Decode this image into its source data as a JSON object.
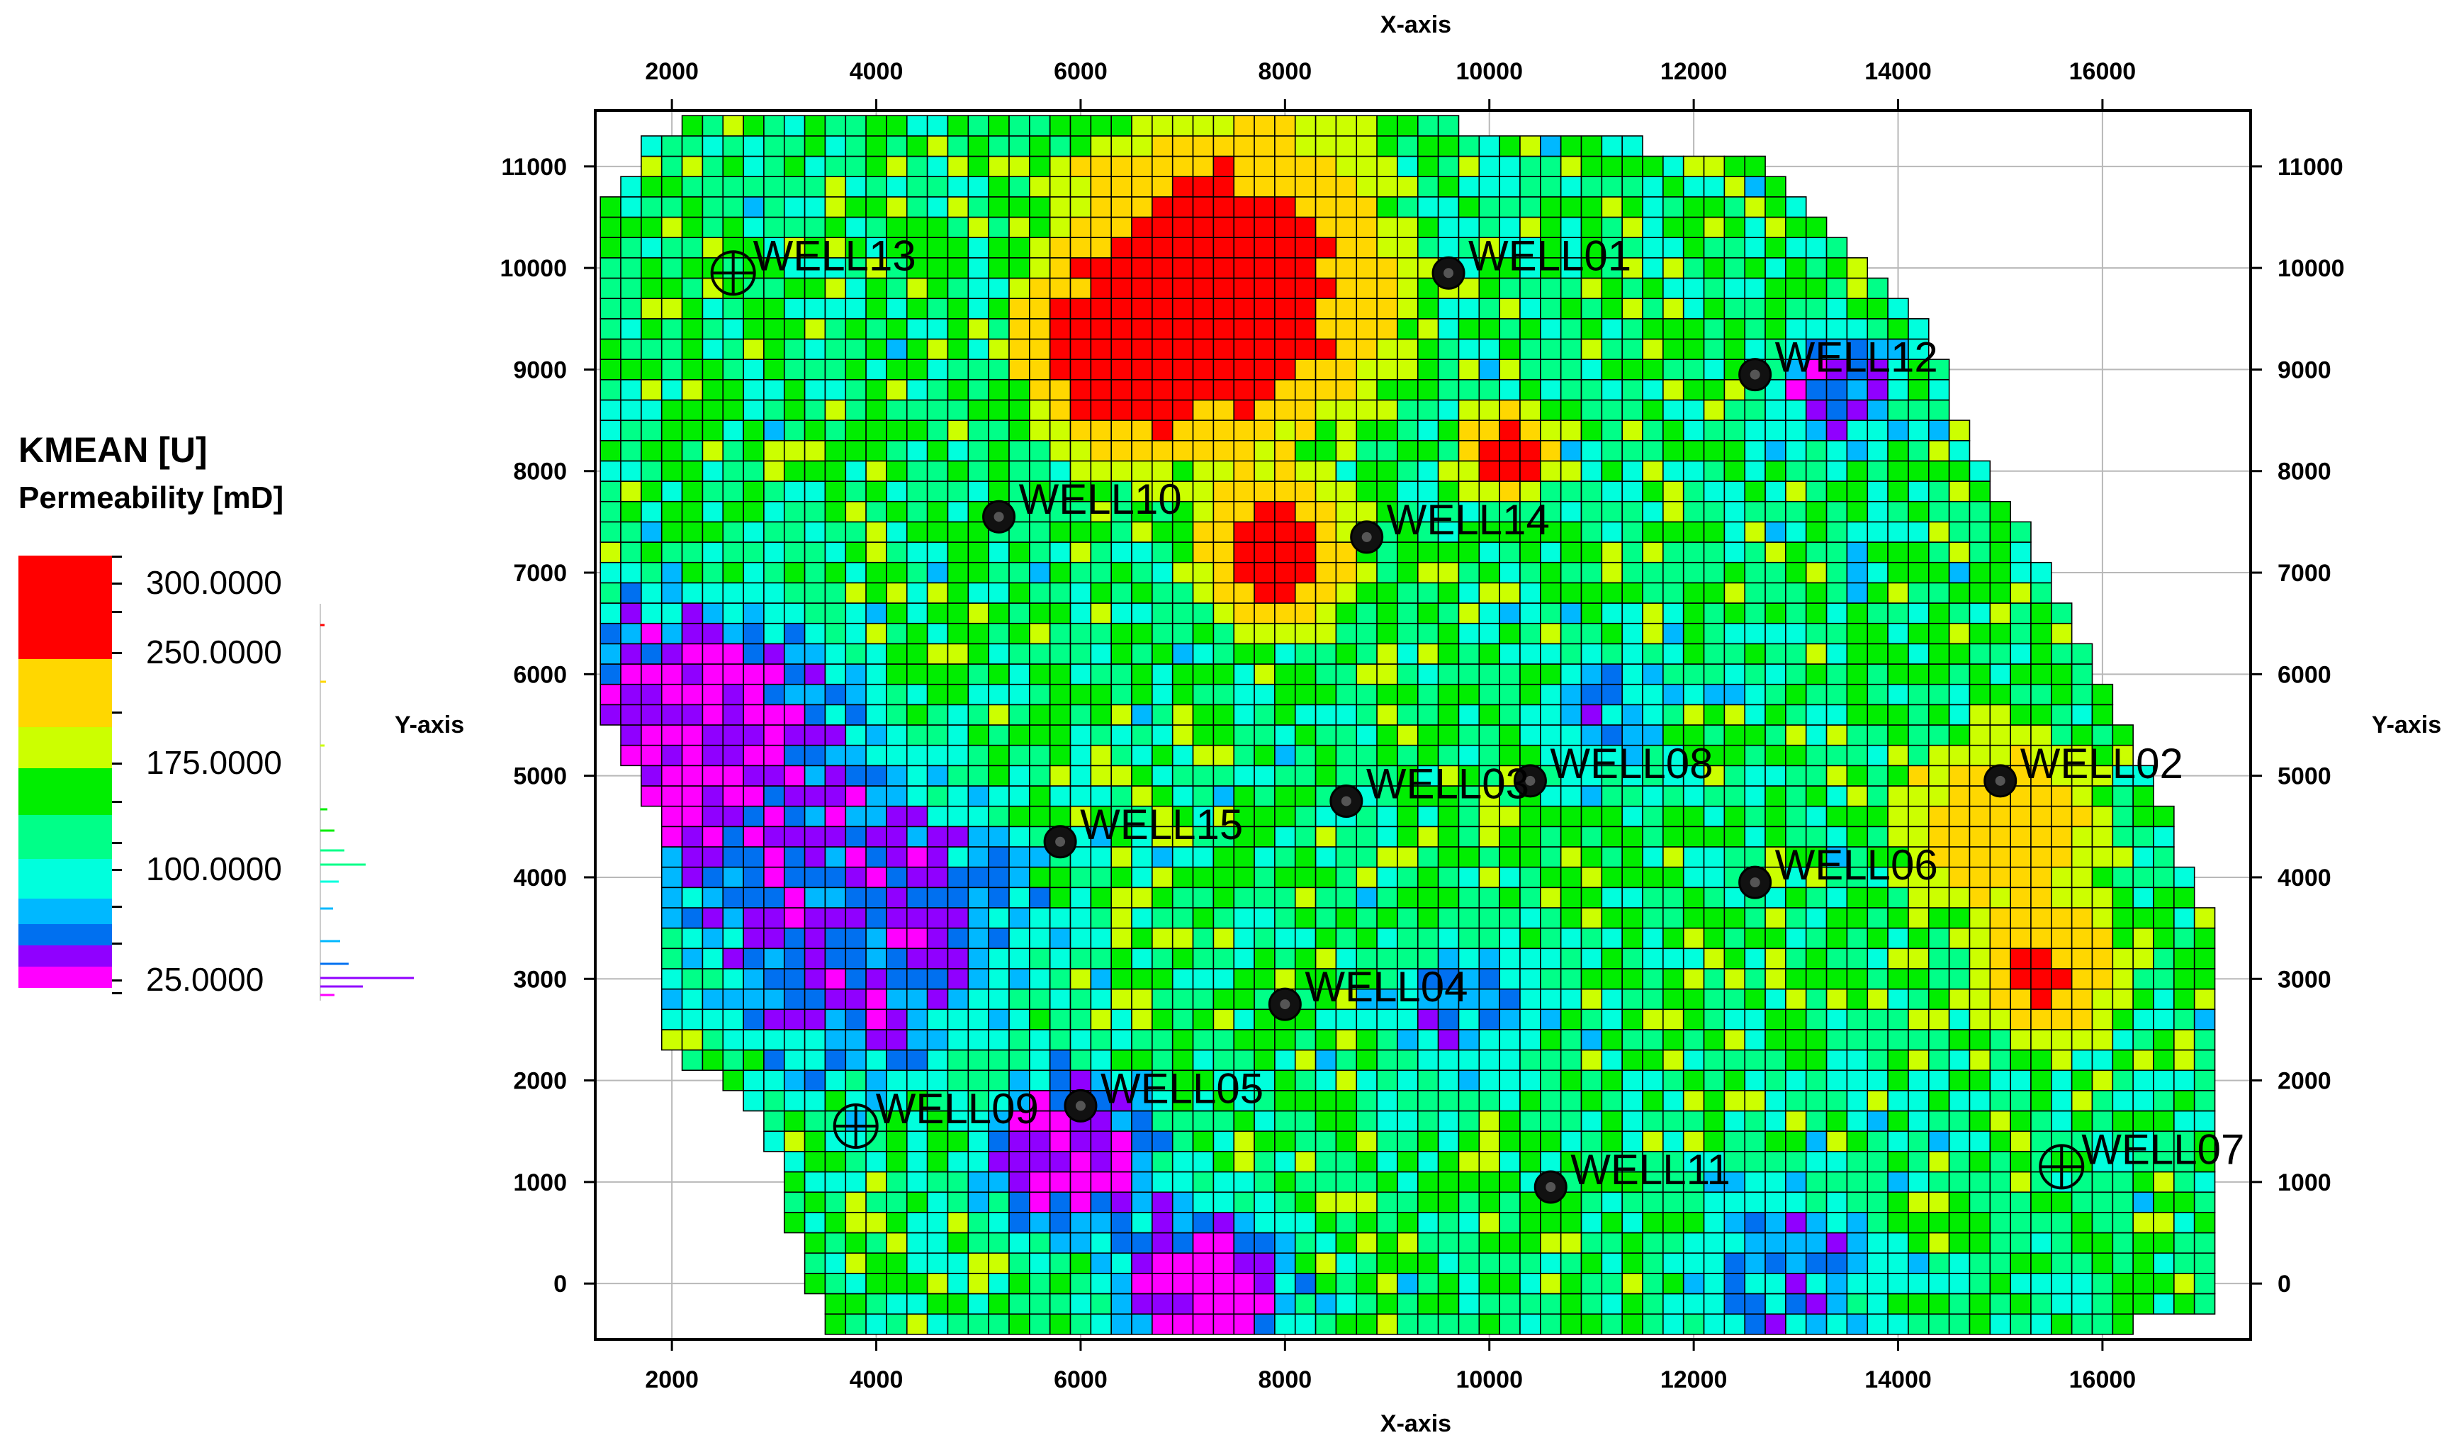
{
  "legend": {
    "title": "KMEAN [U]",
    "subtitle": "Permeability [mD]",
    "labels": [
      "300.0000",
      "250.0000",
      "175.0000",
      "100.0000",
      "25.0000"
    ],
    "label_values": [
      300,
      250,
      175,
      100,
      25
    ],
    "color_bands": [
      {
        "color": "#ff0000",
        "from": 250,
        "to": 300
      },
      {
        "color": "#ffd700",
        "from": 175,
        "to": 250
      },
      {
        "color": "#ccff00",
        "from": 125,
        "to": 175
      },
      {
        "color": "#00ee00",
        "from": 100,
        "to": 125
      },
      {
        "color": "#00ff88",
        "from": 75,
        "to": 100
      },
      {
        "color": "#00ffdd",
        "from": 50,
        "to": 75
      },
      {
        "color": "#00b8ff",
        "from": 35,
        "to": 50
      },
      {
        "color": "#0070f0",
        "from": 25,
        "to": 35
      },
      {
        "color": "#9000ff",
        "from": 10,
        "to": 25
      },
      {
        "color": "#ff00ff",
        "from": 0,
        "to": 10
      }
    ]
  },
  "axes": {
    "x_title_top": "X-axis",
    "x_title_bottom": "X-axis",
    "y_title_left": "Y-axis",
    "y_title_right": "Y-axis",
    "x_ticks": [
      "2000",
      "4000",
      "6000",
      "8000",
      "10000",
      "12000",
      "14000",
      "16000"
    ],
    "y_ticks": [
      "11000",
      "10000",
      "9000",
      "8000",
      "7000",
      "6000",
      "5000",
      "4000",
      "3000",
      "2000",
      "1000",
      "0"
    ]
  },
  "chart_data": {
    "type": "heatmap",
    "x_range": [
      1250,
      17450
    ],
    "y_range": [
      -550,
      11550
    ],
    "cell_size": 200,
    "wells": [
      {
        "name": "WELL01",
        "x": 9600,
        "y": 9950,
        "symbol": "filled"
      },
      {
        "name": "WELL02",
        "x": 15000,
        "y": 4950,
        "symbol": "filled"
      },
      {
        "name": "WELL04",
        "x": 8000,
        "y": 2750,
        "symbol": "filled"
      },
      {
        "name": "WELL05",
        "x": 6000,
        "y": 1750,
        "symbol": "filled"
      },
      {
        "name": "WELL06",
        "x": 12600,
        "y": 3950,
        "symbol": "filled"
      },
      {
        "name": "WELL07",
        "x": 15600,
        "y": 1150,
        "symbol": "crossed"
      },
      {
        "name": "WELL08",
        "x": 10400,
        "y": 4950,
        "symbol": "filled"
      },
      {
        "name": "WELL09",
        "x": 3800,
        "y": 1550,
        "symbol": "crossed"
      },
      {
        "name": "WELL10",
        "x": 5200,
        "y": 7550,
        "symbol": "filled"
      },
      {
        "name": "WELL11",
        "x": 10600,
        "y": 950,
        "symbol": "filled"
      },
      {
        "name": "WELL12",
        "x": 12600,
        "y": 8950,
        "symbol": "filled"
      },
      {
        "name": "WELL13",
        "x": 2600,
        "y": 9950,
        "symbol": "crossed"
      },
      {
        "name": "WELL14",
        "x": 8800,
        "y": 7350,
        "symbol": "filled"
      },
      {
        "name": "WELL15",
        "x": 5800,
        "y": 4350,
        "symbol": "filled"
      },
      {
        "name": "WELL03",
        "x": 8600,
        "y": 4750,
        "symbol": "filled"
      }
    ],
    "well_labels": [
      {
        "text": "WELL01",
        "well": "WELL01"
      },
      {
        "text": "WELL02",
        "well": "WELL02"
      },
      {
        "text": "WELL04",
        "well": "WELL04"
      },
      {
        "text": "WELL05",
        "well": "WELL05"
      },
      {
        "text": "WELL06",
        "well": "WELL06"
      },
      {
        "text": "WELL07",
        "well": "WELL07"
      },
      {
        "text": "WELL08",
        "well": "WELL08"
      },
      {
        "text": "WELL09",
        "well": "WELL09"
      },
      {
        "text": "WELL10",
        "well": "WELL10"
      },
      {
        "text": "WELL11",
        "well": "WELL11"
      },
      {
        "text": "WELL12",
        "well": "WELL12"
      },
      {
        "text": "WELL13",
        "well": "WELL13"
      },
      {
        "text": "WELL14",
        "well": "WELL14"
      },
      {
        "text": "WELL15",
        "well": "WELL15"
      },
      {
        "text": "WELL03",
        "well": "WELL03"
      }
    ],
    "high_zones": [
      {
        "x": 7400,
        "y": 9800,
        "r": 2200,
        "value": 290
      },
      {
        "x": 6400,
        "y": 9200,
        "r": 1300,
        "value": 280
      },
      {
        "x": 7900,
        "y": 7200,
        "r": 1000,
        "value": 270
      },
      {
        "x": 10200,
        "y": 8200,
        "r": 600,
        "value": 270
      },
      {
        "x": 15500,
        "y": 3100,
        "r": 900,
        "value": 260
      },
      {
        "x": 15000,
        "y": 4500,
        "r": 1300,
        "value": 210
      }
    ],
    "low_zones": [
      {
        "x": 2200,
        "y": 5300,
        "r": 2200,
        "value": 5
      },
      {
        "x": 5900,
        "y": 1300,
        "r": 1200,
        "value": 5
      },
      {
        "x": 7200,
        "y": -100,
        "r": 1300,
        "value": 5
      },
      {
        "x": 3900,
        "y": 3600,
        "r": 2200,
        "value": 18
      },
      {
        "x": 13400,
        "y": 8800,
        "r": 900,
        "value": 20
      },
      {
        "x": 11100,
        "y": 5600,
        "r": 900,
        "value": 40
      },
      {
        "x": 12900,
        "y": 100,
        "r": 1400,
        "value": 40
      },
      {
        "x": 9800,
        "y": 2600,
        "r": 1100,
        "value": 40
      }
    ]
  }
}
